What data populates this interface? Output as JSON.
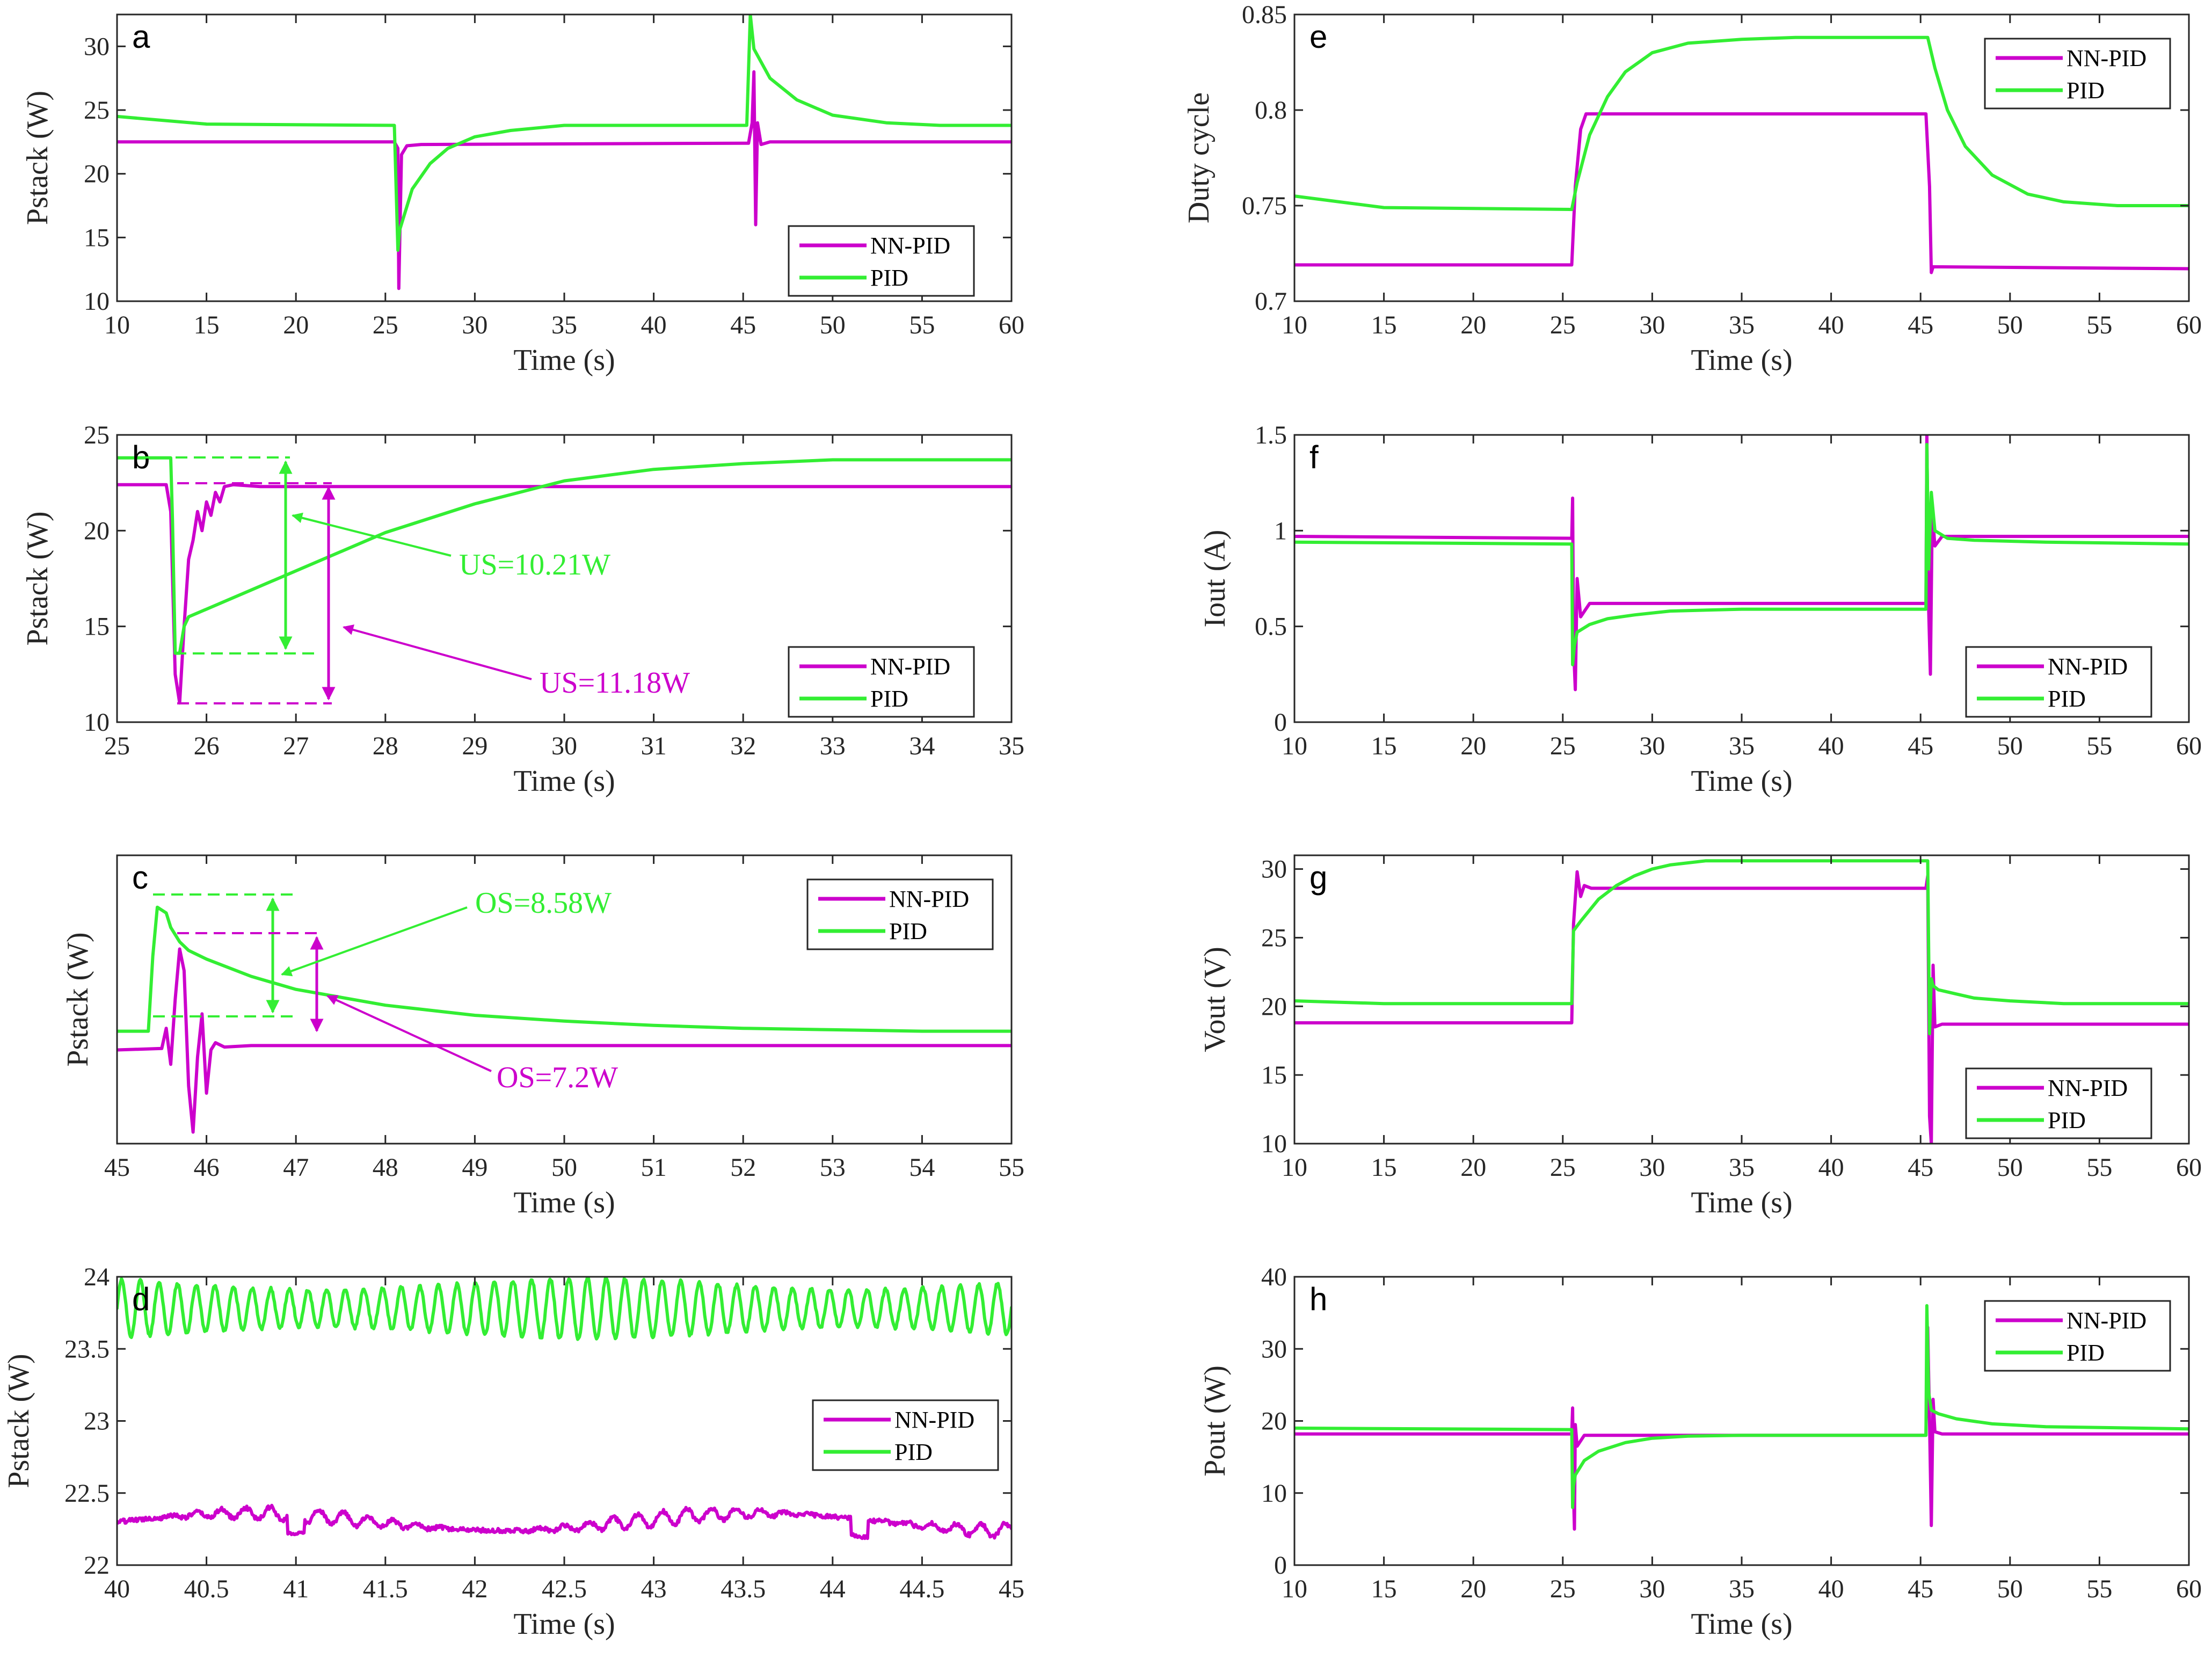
{
  "colors": {
    "nn_pid": "#CC00CC",
    "pid": "#33EE33",
    "axis": "#262626"
  },
  "chart_data": [
    {
      "id": "a",
      "label": "a",
      "type": "line",
      "xlabel": "Time (s)",
      "ylabel": "Pstack (W)",
      "xlim": [
        10,
        60
      ],
      "ylim": [
        10,
        32.5
      ],
      "xticks": [
        10,
        15,
        20,
        25,
        30,
        35,
        40,
        45,
        50,
        55,
        60
      ],
      "yticks": [
        10,
        15,
        20,
        25,
        30
      ],
      "legend": {
        "position": "bottom-right",
        "entries": [
          "NN-PID",
          "PID"
        ]
      },
      "series": [
        {
          "name": "NN-PID",
          "x": [
            10,
            25.5,
            25.7,
            25.75,
            25.9,
            26.2,
            27,
            45,
            45.3,
            45.5,
            45.6,
            45.7,
            45.8,
            46,
            46.5,
            60
          ],
          "y": [
            22.5,
            22.5,
            22.0,
            11.0,
            21.5,
            22.2,
            22.3,
            22.4,
            22.4,
            24.0,
            28.0,
            16.0,
            24.0,
            22.3,
            22.5,
            22.5
          ]
        },
        {
          "name": "PID",
          "x": [
            10,
            15,
            25.5,
            25.7,
            25.8,
            26.5,
            27.5,
            28.5,
            30,
            32,
            35,
            45.2,
            45.4,
            45.6,
            46.5,
            48,
            50,
            53,
            56,
            60
          ],
          "y": [
            24.5,
            23.9,
            23.8,
            14.0,
            15.6,
            18.8,
            20.8,
            22.0,
            22.9,
            23.4,
            23.8,
            23.8,
            32.5,
            29.8,
            27.5,
            25.8,
            24.6,
            24.0,
            23.8,
            23.8
          ]
        }
      ]
    },
    {
      "id": "b",
      "label": "b",
      "type": "line",
      "xlabel": "Time (s)",
      "ylabel": "Pstack (W)",
      "xlim": [
        25,
        35
      ],
      "ylim": [
        10,
        25
      ],
      "xticks": [
        25,
        26,
        27,
        28,
        29,
        30,
        31,
        32,
        33,
        34,
        35
      ],
      "yticks": [
        10,
        15,
        20,
        25
      ],
      "legend": {
        "position": "bottom-right",
        "entries": [
          "NN-PID",
          "PID"
        ]
      },
      "annotations": [
        {
          "text": "US=10.21W",
          "color": "pid"
        },
        {
          "text": "US=11.18W",
          "color": "nn"
        }
      ],
      "series": [
        {
          "name": "NN-PID",
          "x": [
            25,
            25.55,
            25.6,
            25.65,
            25.7,
            25.75,
            25.8,
            25.85,
            25.9,
            25.95,
            26,
            26.05,
            26.1,
            26.15,
            26.2,
            26.3,
            26.6,
            35
          ],
          "y": [
            22.4,
            22.4,
            21.0,
            12.5,
            11.0,
            15.0,
            18.5,
            19.5,
            21.0,
            20.0,
            21.5,
            20.8,
            22.0,
            21.5,
            22.3,
            22.4,
            22.3,
            22.3
          ]
        },
        {
          "name": "PID",
          "x": [
            25,
            25.6,
            25.62,
            25.65,
            25.7,
            25.75,
            25.8,
            26.5,
            27,
            28,
            29,
            29.5,
            30,
            31,
            32,
            33,
            34,
            35
          ],
          "y": [
            23.8,
            23.8,
            20.5,
            13.6,
            13.6,
            15.0,
            15.5,
            16.9,
            17.9,
            19.9,
            21.4,
            22.0,
            22.6,
            23.2,
            23.5,
            23.7,
            23.7,
            23.7
          ]
        }
      ]
    },
    {
      "id": "c",
      "label": "c",
      "type": "line",
      "xlabel": "Time (s)",
      "ylabel": "Pstack (W)",
      "xlim": [
        45,
        55
      ],
      "ylim": [
        16,
        36
      ],
      "xticks": [
        45,
        46,
        47,
        48,
        49,
        50,
        51,
        52,
        53,
        54,
        55
      ],
      "yticks": [],
      "legend": {
        "position": "top-right",
        "entries": [
          "NN-PID",
          "PID"
        ]
      },
      "annotations": [
        {
          "text": "OS=8.58W",
          "color": "pid"
        },
        {
          "text": "OS=7.2W",
          "color": "nn"
        }
      ],
      "series": [
        {
          "name": "NN-PID",
          "x": [
            45,
            45.5,
            45.55,
            45.6,
            45.65,
            45.7,
            45.75,
            45.8,
            45.85,
            45.9,
            45.95,
            46,
            46.05,
            46.1,
            46.2,
            46.5,
            55
          ],
          "y": [
            22.5,
            22.6,
            24.0,
            21.5,
            26.0,
            29.5,
            28.0,
            20.0,
            16.8,
            22.0,
            25.0,
            19.5,
            22.5,
            23.0,
            22.7,
            22.8,
            22.8
          ]
        },
        {
          "name": "PID",
          "x": [
            45,
            45.35,
            45.4,
            45.45,
            45.55,
            45.6,
            45.7,
            45.8,
            46,
            46.5,
            47,
            48,
            49,
            50,
            51,
            52,
            53,
            54,
            55
          ],
          "y": [
            23.8,
            23.8,
            29.0,
            32.4,
            32.0,
            31.0,
            30.0,
            29.4,
            28.8,
            27.6,
            26.7,
            25.6,
            24.9,
            24.5,
            24.2,
            24.0,
            23.9,
            23.8,
            23.8
          ]
        }
      ]
    },
    {
      "id": "d",
      "label": "d",
      "type": "line",
      "xlabel": "Time (s)",
      "ylabel": "Pstack (W)",
      "xlim": [
        40,
        45
      ],
      "ylim": [
        22,
        24
      ],
      "xticks": [
        40,
        40.5,
        41,
        41.5,
        42,
        42.5,
        43,
        43.5,
        44,
        44.5,
        45
      ],
      "yticks": [
        22,
        22.5,
        23,
        23.5,
        24
      ],
      "legend": {
        "position": "center-right",
        "entries": [
          "NN-PID",
          "PID"
        ]
      },
      "series": [
        {
          "name": "NN-PID",
          "generator": "osc-low",
          "x": [],
          "y": []
        },
        {
          "name": "PID",
          "generator": "osc-high",
          "x": [],
          "y": []
        }
      ]
    },
    {
      "id": "e",
      "label": "e",
      "type": "line",
      "xlabel": "Time (s)",
      "ylabel": "Duty cycle",
      "xlim": [
        10,
        60
      ],
      "ylim": [
        0.7,
        0.85
      ],
      "xticks": [
        10,
        15,
        20,
        25,
        30,
        35,
        40,
        45,
        50,
        55,
        60
      ],
      "yticks": [
        0.7,
        0.75,
        0.8,
        0.85
      ],
      "legend": {
        "position": "top-right",
        "entries": [
          "NN-PID",
          "PID"
        ]
      },
      "series": [
        {
          "name": "NN-PID",
          "x": [
            10,
            25.5,
            25.7,
            26,
            26.3,
            45.3,
            45.5,
            45.6,
            45.7,
            60
          ],
          "y": [
            0.719,
            0.719,
            0.76,
            0.79,
            0.798,
            0.798,
            0.76,
            0.715,
            0.718,
            0.717
          ]
        },
        {
          "name": "PID",
          "x": [
            10,
            15,
            25.5,
            25.8,
            26.5,
            27.5,
            28.5,
            30,
            32,
            35,
            38,
            45.4,
            45.8,
            46.5,
            47.5,
            49,
            51,
            53,
            56,
            60
          ],
          "y": [
            0.755,
            0.749,
            0.748,
            0.762,
            0.787,
            0.807,
            0.82,
            0.83,
            0.835,
            0.837,
            0.838,
            0.838,
            0.822,
            0.8,
            0.781,
            0.766,
            0.756,
            0.752,
            0.75,
            0.75
          ]
        }
      ]
    },
    {
      "id": "f",
      "label": "f",
      "type": "line",
      "xlabel": "Time (s)",
      "ylabel": "Iout (A)",
      "xlim": [
        10,
        60
      ],
      "ylim": [
        0,
        1.5
      ],
      "xticks": [
        10,
        15,
        20,
        25,
        30,
        35,
        40,
        45,
        50,
        55,
        60
      ],
      "yticks": [
        0,
        0.5,
        1,
        1.5
      ],
      "legend": {
        "position": "bottom-right",
        "entries": [
          "NN-PID",
          "PID"
        ]
      },
      "series": [
        {
          "name": "NN-PID",
          "x": [
            10,
            25.5,
            25.55,
            25.6,
            25.7,
            25.8,
            26,
            26.5,
            45.2,
            45.3,
            45.35,
            45.45,
            45.55,
            45.65,
            45.8,
            46.2,
            60
          ],
          "y": [
            0.97,
            0.96,
            1.17,
            0.4,
            0.17,
            0.75,
            0.55,
            0.62,
            0.62,
            0.62,
            1.5,
            0.6,
            0.25,
            1.1,
            0.92,
            0.97,
            0.97
          ]
        },
        {
          "name": "PID",
          "x": [
            10,
            25.5,
            25.55,
            25.65,
            25.8,
            26.5,
            27.5,
            29,
            31,
            35,
            40,
            45.3,
            45.35,
            45.45,
            45.6,
            45.8,
            46.5,
            48,
            52,
            60
          ],
          "y": [
            0.94,
            0.93,
            0.3,
            0.4,
            0.47,
            0.51,
            0.54,
            0.56,
            0.58,
            0.59,
            0.59,
            0.59,
            1.45,
            0.8,
            1.2,
            1.0,
            0.96,
            0.95,
            0.94,
            0.93
          ]
        }
      ]
    },
    {
      "id": "g",
      "label": "g",
      "type": "line",
      "xlabel": "Time (s)",
      "ylabel": "Vout (V)",
      "xlim": [
        10,
        60
      ],
      "ylim": [
        10,
        31
      ],
      "xticks": [
        10,
        15,
        20,
        25,
        30,
        35,
        40,
        45,
        50,
        55,
        60
      ],
      "yticks": [
        10,
        15,
        20,
        25,
        30
      ],
      "legend": {
        "position": "bottom-right",
        "entries": [
          "NN-PID",
          "PID"
        ]
      },
      "series": [
        {
          "name": "NN-PID",
          "x": [
            10,
            25.5,
            25.6,
            25.8,
            26,
            26.2,
            26.6,
            45.3,
            45.4,
            45.5,
            45.6,
            45.7,
            45.8,
            46.2,
            60
          ],
          "y": [
            18.8,
            18.8,
            26.0,
            29.8,
            28.0,
            28.8,
            28.6,
            28.6,
            29.5,
            12.0,
            10.0,
            23.0,
            18.5,
            18.7,
            18.7
          ]
        },
        {
          "name": "PID",
          "x": [
            10,
            15,
            25.5,
            25.6,
            26,
            27,
            28,
            29,
            30,
            31,
            33,
            36,
            45.4,
            45.5,
            45.6,
            45.7,
            46,
            47,
            48,
            50,
            53,
            60
          ],
          "y": [
            20.4,
            20.2,
            20.2,
            25.5,
            26.2,
            27.8,
            28.8,
            29.5,
            30.0,
            30.3,
            30.6,
            30.6,
            30.6,
            18.0,
            22.0,
            21.5,
            21.2,
            20.9,
            20.6,
            20.4,
            20.2,
            20.2
          ]
        }
      ]
    },
    {
      "id": "h",
      "label": "h",
      "type": "line",
      "xlabel": "Time (s)",
      "ylabel": "Pout (W)",
      "xlim": [
        10,
        60
      ],
      "ylim": [
        0,
        40
      ],
      "xticks": [
        10,
        15,
        20,
        25,
        30,
        35,
        40,
        45,
        50,
        55,
        60
      ],
      "yticks": [
        0,
        10,
        20,
        30,
        40
      ],
      "legend": {
        "position": "top-right",
        "entries": [
          "NN-PID",
          "PID"
        ]
      },
      "series": [
        {
          "name": "NN-PID",
          "x": [
            10,
            25.5,
            25.55,
            25.6,
            25.65,
            25.7,
            25.8,
            26.2,
            45.3,
            45.4,
            45.5,
            45.6,
            45.7,
            45.8,
            46.2,
            60
          ],
          "y": [
            18.2,
            18.2,
            21.8,
            10.0,
            5.0,
            19.5,
            16.5,
            18.0,
            18.0,
            33.0,
            20.0,
            5.5,
            23.0,
            18.5,
            18.2,
            18.2
          ]
        },
        {
          "name": "PID",
          "x": [
            10,
            25.5,
            25.55,
            25.6,
            25.7,
            26.2,
            27,
            28.5,
            30,
            32,
            35,
            45.3,
            45.35,
            45.45,
            45.6,
            46,
            47,
            49,
            52,
            60
          ],
          "y": [
            19.0,
            18.8,
            8.0,
            11.0,
            12.5,
            14.5,
            15.8,
            17.0,
            17.6,
            17.9,
            18.0,
            18.0,
            36.0,
            24.0,
            21.5,
            21.0,
            20.3,
            19.6,
            19.2,
            18.9
          ]
        }
      ]
    }
  ]
}
